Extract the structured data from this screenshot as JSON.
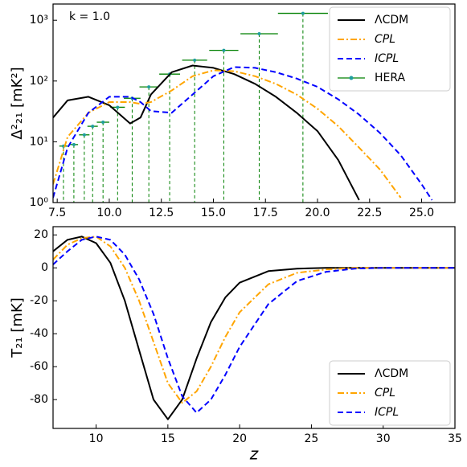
{
  "chart_data": [
    {
      "type": "line",
      "annotation": "k = 1.0",
      "ylabel": "Δ²₂₁ [mK²]",
      "yscale": "log",
      "legend": "upper right",
      "xlim": [
        7.3,
        26.6
      ],
      "ylim": [
        1,
        1850
      ],
      "xticks": [
        7.5,
        {
          "value": 10,
          "label": "10.0"
        },
        12.5,
        {
          "value": 15,
          "label": "15.0"
        },
        17.5,
        {
          "value": 20,
          "label": "20.0"
        },
        22.5,
        {
          "value": 25,
          "label": "25.0"
        }
      ],
      "yticks": [
        {
          "value": 1,
          "label": "10⁰"
        },
        {
          "value": 10,
          "label": "10¹"
        },
        {
          "value": 100,
          "label": "10²"
        },
        {
          "value": 1000,
          "label": "10³"
        }
      ],
      "x": [
        7.3,
        8,
        9,
        10,
        11,
        11.5,
        12,
        13,
        14,
        15,
        16,
        17,
        18,
        19,
        20,
        21,
        22,
        23,
        24,
        25,
        25.5
      ],
      "series": [
        {
          "name": "ΛCDM",
          "color": "#000000",
          "dash": "solid",
          "values": [
            25,
            48,
            55,
            40,
            20,
            25,
            60,
            140,
            180,
            165,
            130,
            90,
            55,
            30,
            15,
            5,
            1.1,
            null,
            null,
            null,
            null
          ]
        },
        {
          "name": "CPL",
          "color": "#ffa500",
          "dash": "dashdot",
          "values": [
            2,
            12,
            30,
            45,
            45,
            42,
            45,
            70,
            120,
            150,
            145,
            120,
            90,
            60,
            35,
            18,
            8,
            3.5,
            1.2,
            null,
            null
          ]
        },
        {
          "name": "ICPL",
          "color": "#0000ff",
          "dash": "dashed",
          "values": [
            1.2,
            8,
            30,
            55,
            55,
            45,
            32,
            30,
            60,
            120,
            170,
            165,
            140,
            110,
            80,
            50,
            28,
            14,
            6,
            2,
            1.1
          ]
        }
      ],
      "points": {
        "name": "HERA",
        "color": "#008000",
        "x": [
          7.8,
          8.3,
          8.8,
          9.2,
          9.7,
          10.4,
          11.1,
          11.9,
          12.9,
          14.1,
          15.5,
          17.2,
          19.3
        ],
        "xerr": [
          0.2,
          0.2,
          0.25,
          0.25,
          0.3,
          0.35,
          0.4,
          0.45,
          0.5,
          0.6,
          0.7,
          0.9,
          1.2
        ],
        "values": [
          8.5,
          9,
          13,
          18,
          21,
          37,
          52,
          80,
          130,
          220,
          320,
          600,
          1300
        ]
      }
    },
    {
      "type": "line",
      "xlabel": "z",
      "ylabel": "T₂₁ [mK]",
      "legend": "lower right",
      "xlim": [
        7,
        35
      ],
      "ylim": [
        -97.5,
        25
      ],
      "xticks": [
        10,
        15,
        20,
        25,
        30,
        35
      ],
      "yticks": [
        20,
        0,
        -20,
        -40,
        -60,
        -80
      ],
      "x": [
        7,
        8,
        9,
        10,
        11,
        12,
        13,
        14,
        15,
        16,
        17,
        18,
        19,
        20,
        22,
        24,
        26,
        28,
        30,
        35
      ],
      "series": [
        {
          "name": "ΛCDM",
          "color": "#000000",
          "dash": "solid",
          "values": [
            10,
            17,
            19,
            15,
            3,
            -20,
            -50,
            -80,
            -92,
            -80,
            -55,
            -33,
            -18,
            -9,
            -2,
            -0.5,
            0,
            0,
            0,
            0
          ]
        },
        {
          "name": "CPL",
          "color": "#ffa500",
          "dash": "dashdot",
          "values": [
            5,
            14,
            18,
            19,
            13,
            0,
            -20,
            -45,
            -70,
            -82,
            -75,
            -60,
            -42,
            -27,
            -10,
            -3,
            -1,
            0,
            0,
            0
          ]
        },
        {
          "name": "ICPL",
          "color": "#0000ff",
          "dash": "dashed",
          "values": [
            2,
            10,
            17,
            19,
            17,
            8,
            -7,
            -28,
            -55,
            -78,
            -88,
            -80,
            -65,
            -48,
            -22,
            -8,
            -2.5,
            -0.5,
            0,
            0
          ]
        }
      ]
    }
  ]
}
